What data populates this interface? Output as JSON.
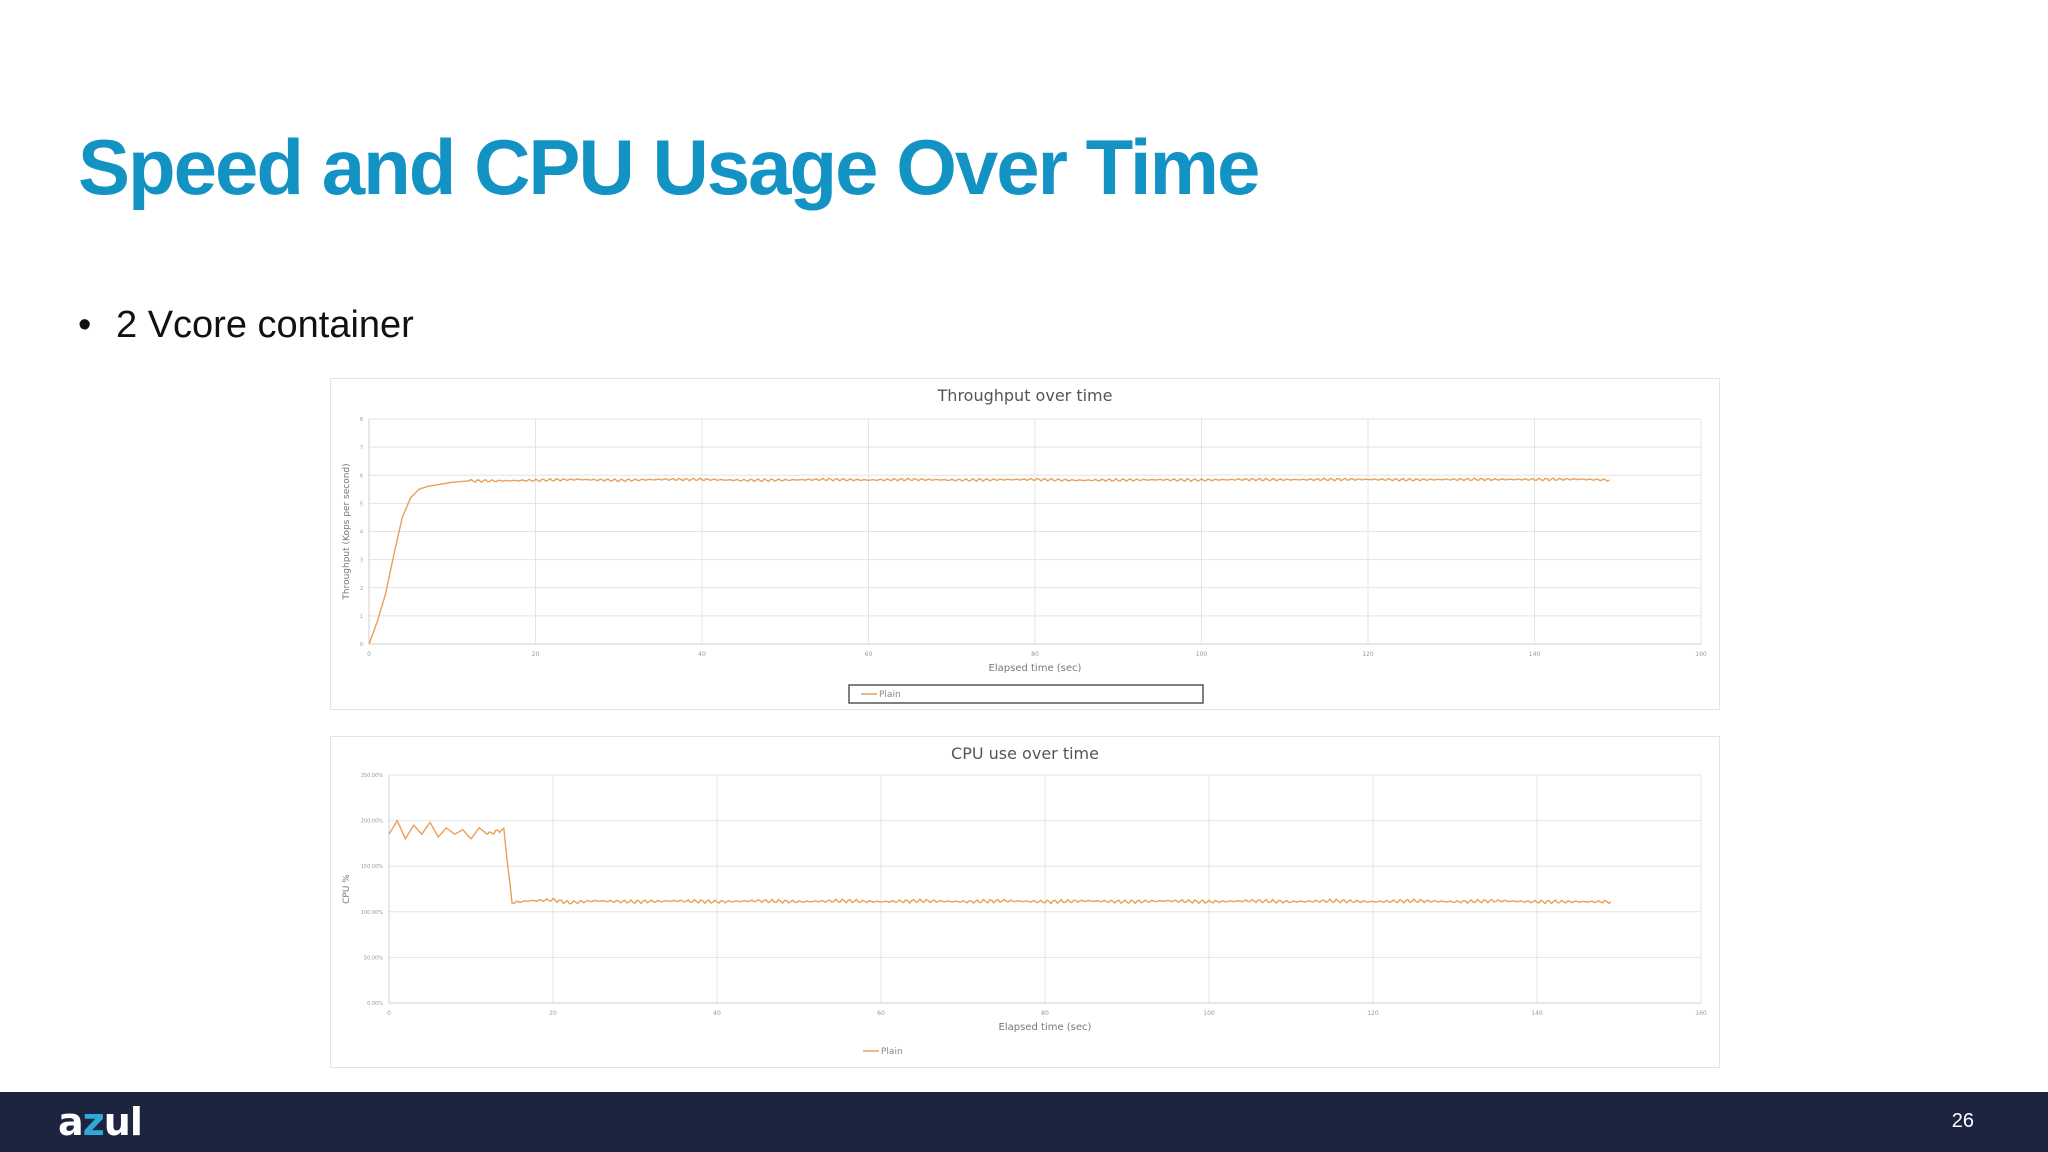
{
  "slide": {
    "title": "Speed and CPU Usage Over Time",
    "bullets": [
      "2 Vcore container"
    ],
    "page_number": "26"
  },
  "footer": {
    "logo_text_a": "a",
    "logo_text_z": "z",
    "logo_text_ul": "ul"
  },
  "colors": {
    "title": "#1393c4",
    "series": "#e8a05a",
    "footer_bg": "#1c2440"
  },
  "chart_data": [
    {
      "type": "line",
      "title": "Throughput over time",
      "xlabel": "Elapsed time (sec)",
      "ylabel": "Throughput (Kops per second)",
      "xlim": [
        0,
        160
      ],
      "ylim": [
        0,
        8
      ],
      "x_ticks": [
        0,
        20,
        40,
        60,
        80,
        100,
        120,
        140,
        160
      ],
      "y_ticks": [
        0,
        1,
        2,
        3,
        4,
        5,
        6,
        7,
        8
      ],
      "grid": true,
      "legend": "bottom",
      "series": [
        {
          "name": "Plain",
          "points": [
            [
              0,
              0
            ],
            [
              1,
              0.8
            ],
            [
              2,
              1.8
            ],
            [
              3,
              3.2
            ],
            [
              4,
              4.5
            ],
            [
              5,
              5.2
            ],
            [
              6,
              5.5
            ],
            [
              7,
              5.6
            ],
            [
              8,
              5.65
            ],
            [
              10,
              5.75
            ],
            [
              12,
              5.8
            ],
            [
              15,
              5.8
            ],
            [
              20,
              5.82
            ],
            [
              25,
              5.85
            ],
            [
              30,
              5.82
            ],
            [
              35,
              5.85
            ],
            [
              40,
              5.85
            ],
            [
              45,
              5.82
            ],
            [
              50,
              5.83
            ],
            [
              55,
              5.85
            ],
            [
              60,
              5.83
            ],
            [
              65,
              5.85
            ],
            [
              70,
              5.83
            ],
            [
              75,
              5.84
            ],
            [
              80,
              5.85
            ],
            [
              85,
              5.82
            ],
            [
              90,
              5.83
            ],
            [
              95,
              5.84
            ],
            [
              100,
              5.83
            ],
            [
              105,
              5.85
            ],
            [
              110,
              5.84
            ],
            [
              115,
              5.85
            ],
            [
              120,
              5.85
            ],
            [
              125,
              5.84
            ],
            [
              130,
              5.85
            ],
            [
              135,
              5.85
            ],
            [
              140,
              5.85
            ],
            [
              145,
              5.86
            ],
            [
              149,
              5.83
            ]
          ]
        }
      ]
    },
    {
      "type": "line",
      "title": "CPU use over time",
      "xlabel": "Elapsed time (sec)",
      "ylabel": "CPU %",
      "xlim": [
        0,
        160
      ],
      "ylim": [
        0,
        250
      ],
      "x_ticks": [
        0,
        20,
        40,
        60,
        80,
        100,
        120,
        140,
        160
      ],
      "y_ticks": [
        0,
        50,
        100,
        150,
        200,
        250
      ],
      "y_tick_labels": [
        "0.00%",
        "50.00%",
        "100.00%",
        "150.00%",
        "200.00%",
        "250.00%"
      ],
      "grid": true,
      "legend": "bottom",
      "series": [
        {
          "name": "Plain",
          "points": [
            [
              0,
              185
            ],
            [
              1,
              200
            ],
            [
              2,
              180
            ],
            [
              3,
              195
            ],
            [
              4,
              185
            ],
            [
              5,
              198
            ],
            [
              6,
              182
            ],
            [
              7,
              192
            ],
            [
              8,
              185
            ],
            [
              9,
              190
            ],
            [
              10,
              180
            ],
            [
              11,
              192
            ],
            [
              12,
              185
            ],
            [
              13,
              188
            ],
            [
              14,
              190
            ],
            [
              15,
              110
            ],
            [
              17,
              112
            ],
            [
              20,
              113
            ],
            [
              22,
              110
            ],
            [
              25,
              112
            ],
            [
              30,
              111
            ],
            [
              35,
              112
            ],
            [
              40,
              111
            ],
            [
              45,
              112
            ],
            [
              50,
              111
            ],
            [
              55,
              112
            ],
            [
              60,
              111
            ],
            [
              65,
              112
            ],
            [
              70,
              111
            ],
            [
              75,
              112
            ],
            [
              80,
              111
            ],
            [
              85,
              112
            ],
            [
              90,
              111
            ],
            [
              95,
              112
            ],
            [
              100,
              111
            ],
            [
              105,
              112
            ],
            [
              110,
              111
            ],
            [
              115,
              112
            ],
            [
              120,
              111
            ],
            [
              125,
              112
            ],
            [
              130,
              111
            ],
            [
              135,
              112
            ],
            [
              140,
              111
            ],
            [
              149,
              111
            ]
          ]
        }
      ]
    }
  ]
}
